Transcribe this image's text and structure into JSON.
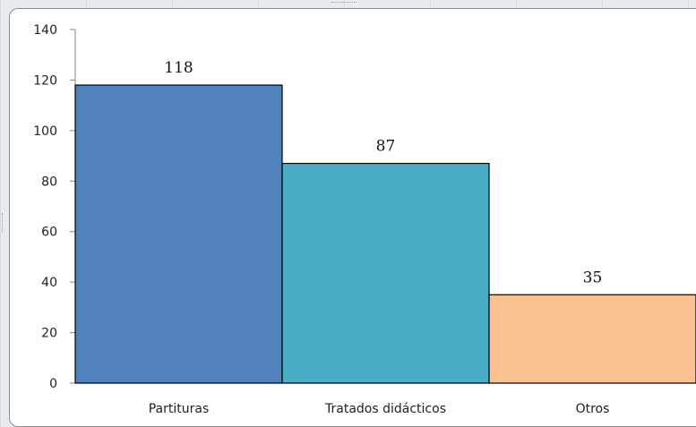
{
  "chart_data": {
    "type": "bar",
    "categories": [
      "Partituras",
      "Tratados didácticos",
      "Otros"
    ],
    "values": [
      118,
      87,
      35
    ],
    "data_labels": [
      "118",
      "87",
      "35"
    ],
    "colors": [
      "#4f81bd",
      "#4bacc6",
      "#f9c090"
    ],
    "ylim": [
      0,
      140
    ],
    "yticks": [
      "0",
      "20",
      "40",
      "60",
      "80",
      "100",
      "120",
      "140"
    ],
    "title": "",
    "xlabel": "",
    "ylabel": "",
    "grid": false,
    "legend": "none"
  }
}
